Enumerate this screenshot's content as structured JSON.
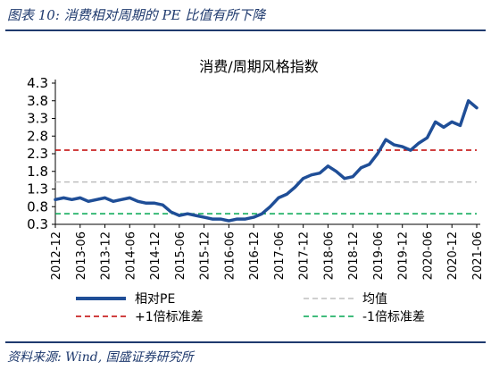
{
  "figure": {
    "title": "图表 10:  消费相对周期的 PE 比值有所下降",
    "source": "资料来源:  Wind, 国盛证券研究所"
  },
  "colors": {
    "accent": "#1f3a6e",
    "series_main": "#1f4e97",
    "mean_line": "#bfbfbf",
    "plus1sd_line": "#c00000",
    "minus1sd_line": "#00a651"
  },
  "chart_data": {
    "type": "line",
    "title": "消费/周期风格指数",
    "xlabel": "",
    "ylabel": "",
    "ylim": [
      0.3,
      4.3
    ],
    "yticks": [
      "4.3",
      "3.8",
      "3.3",
      "2.8",
      "2.3",
      "1.8",
      "1.3",
      "0.8",
      "0.3"
    ],
    "x_tick_labels": [
      "2012-12",
      "2013-06",
      "2013-12",
      "2014-06",
      "2014-12",
      "2015-06",
      "2015-12",
      "2016-06",
      "2016-12",
      "2017-06",
      "2017-12",
      "2018-06",
      "2018-12",
      "2019-06",
      "2019-12",
      "2020-06",
      "2020-12",
      "2021-06"
    ],
    "grid": false,
    "legend_position": "bottom",
    "series": [
      {
        "name": "相对PE",
        "x": [
          "2012-12",
          "2013-02",
          "2013-04",
          "2013-06",
          "2013-08",
          "2013-10",
          "2013-12",
          "2014-02",
          "2014-04",
          "2014-06",
          "2014-08",
          "2014-10",
          "2014-12",
          "2015-02",
          "2015-04",
          "2015-06",
          "2015-08",
          "2015-10",
          "2015-12",
          "2016-02",
          "2016-04",
          "2016-06",
          "2016-08",
          "2016-10",
          "2016-12",
          "2017-02",
          "2017-04",
          "2017-06",
          "2017-08",
          "2017-10",
          "2017-12",
          "2018-02",
          "2018-04",
          "2018-06",
          "2018-08",
          "2018-10",
          "2018-12",
          "2019-02",
          "2019-04",
          "2019-06",
          "2019-08",
          "2019-10",
          "2019-12",
          "2020-02",
          "2020-04",
          "2020-06",
          "2020-08",
          "2020-10",
          "2020-12",
          "2021-02",
          "2021-04",
          "2021-06"
        ],
        "values": [
          1.0,
          1.05,
          1.0,
          1.05,
          0.95,
          1.0,
          1.05,
          0.95,
          1.0,
          1.05,
          0.95,
          0.9,
          0.9,
          0.85,
          0.65,
          0.55,
          0.6,
          0.55,
          0.5,
          0.45,
          0.45,
          0.4,
          0.45,
          0.45,
          0.5,
          0.6,
          0.8,
          1.05,
          1.15,
          1.35,
          1.6,
          1.7,
          1.75,
          1.95,
          1.8,
          1.6,
          1.65,
          1.9,
          2.0,
          2.3,
          2.7,
          2.55,
          2.5,
          2.4,
          2.6,
          2.75,
          3.2,
          3.05,
          3.2,
          3.1,
          3.8,
          3.6
        ]
      },
      {
        "name": "均值",
        "value": 1.5
      },
      {
        "name": "+1倍标准差",
        "value": 2.4
      },
      {
        "name": "-1倍标准差",
        "value": 0.6
      }
    ]
  }
}
